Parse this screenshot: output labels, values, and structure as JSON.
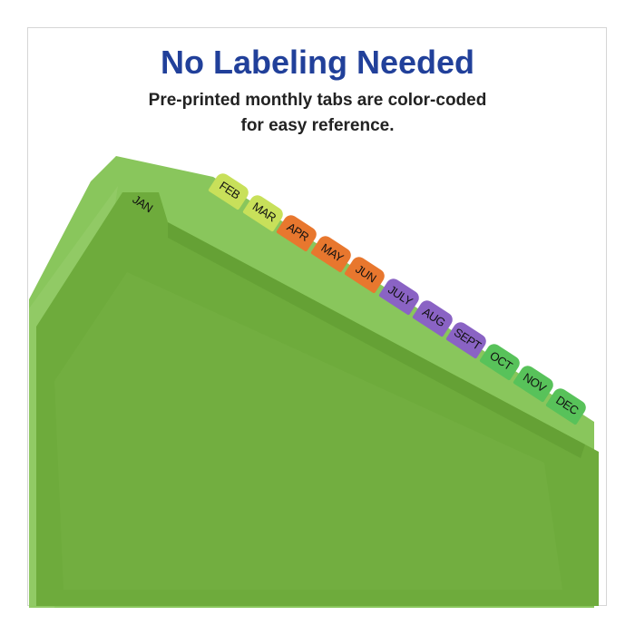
{
  "headline": "No Labeling Needed",
  "subtitle_line1": "Pre-printed monthly tabs are color-coded",
  "subtitle_line2": "for easy reference.",
  "colors": {
    "headline": "#21409a",
    "divider": "#6fae3a",
    "yellow_green": "#c8e05a",
    "orange": "#e8772e",
    "purple": "#8a63c4",
    "green": "#58c25a"
  },
  "tabs": [
    {
      "label": "JAN",
      "color": "#6fae3a"
    },
    {
      "label": "FEB",
      "color": "#c8e05a"
    },
    {
      "label": "MAR",
      "color": "#c8e05a"
    },
    {
      "label": "APR",
      "color": "#e8772e"
    },
    {
      "label": "MAY",
      "color": "#e8772e"
    },
    {
      "label": "JUN",
      "color": "#e8772e"
    },
    {
      "label": "JULY",
      "color": "#8a63c4"
    },
    {
      "label": "AUG",
      "color": "#8a63c4"
    },
    {
      "label": "SEPT",
      "color": "#8a63c4"
    },
    {
      "label": "OCT",
      "color": "#58c25a"
    },
    {
      "label": "NOV",
      "color": "#58c25a"
    },
    {
      "label": "DEC",
      "color": "#58c25a"
    }
  ]
}
